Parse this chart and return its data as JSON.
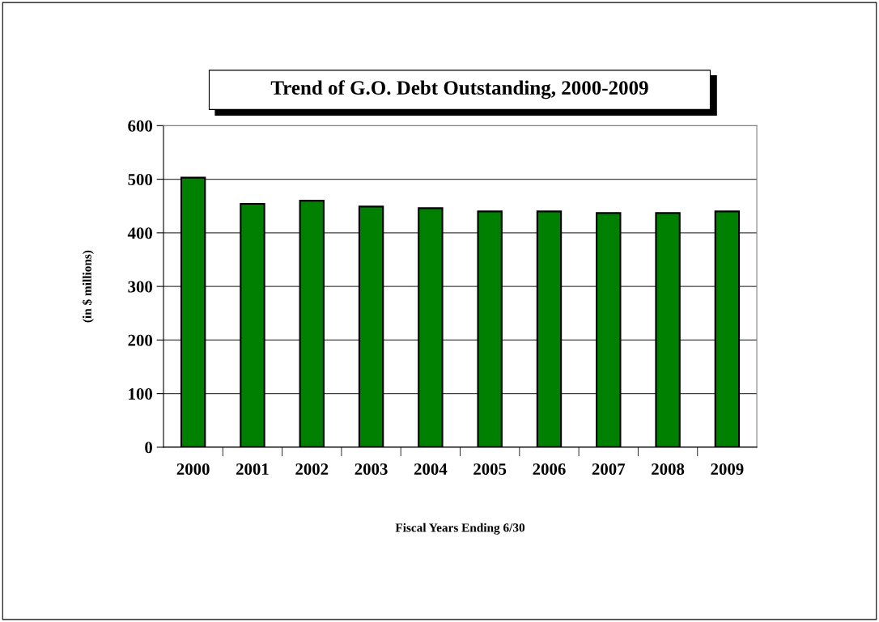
{
  "chart_data": {
    "type": "bar",
    "title": "Trend of G.O. Debt Outstanding, 2000-2009",
    "xlabel": "Fiscal Years Ending 6/30",
    "ylabel": "(in $ millions)",
    "categories": [
      "2000",
      "2001",
      "2002",
      "2003",
      "2004",
      "2005",
      "2006",
      "2007",
      "2008",
      "2009"
    ],
    "values": [
      503,
      454,
      460,
      449,
      446,
      440,
      440,
      437,
      437,
      440
    ],
    "color": "#008000",
    "ylim": [
      0,
      600
    ],
    "yticks": [
      0,
      100,
      200,
      300,
      400,
      500,
      600
    ],
    "grid": "y",
    "legend": false
  }
}
